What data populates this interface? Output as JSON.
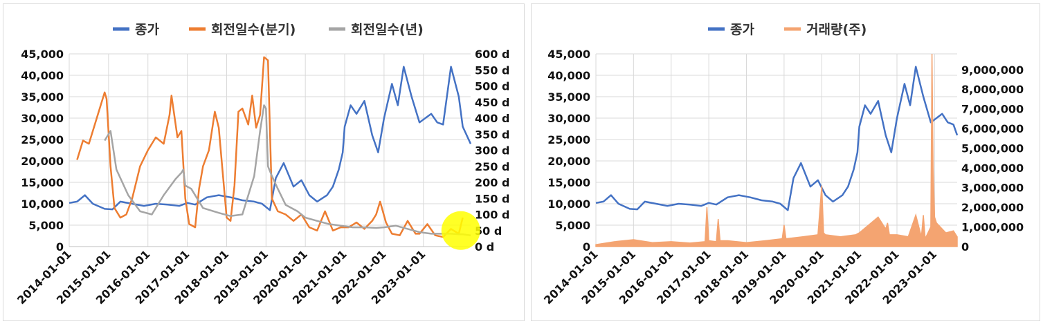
{
  "colors": {
    "close": "#4472C4",
    "turnover_q": "#ED7D31",
    "turnover_y": "#A5A5A5",
    "volume": "#F4A471",
    "highlight": "#FFFF00"
  },
  "chart_data": [
    {
      "type": "line",
      "legend_position": "top",
      "grid": true,
      "legend": [
        "종가",
        "회전일수(분기)",
        "회전일수(년)"
      ],
      "x_tick_labels": [
        "2014-01-01",
        "2015-01-01",
        "2016-01-01",
        "2017-01-01",
        "2018-01-01",
        "2019-01-01",
        "2020-01-01",
        "2021-01-01",
        "2022-01-01",
        "2023-01-01"
      ],
      "x_range": [
        2014.0,
        2024.2
      ],
      "y_left_range": [
        0,
        45000
      ],
      "y_left_ticks": [
        "0",
        "5,000",
        "10,000",
        "15,000",
        "20,000",
        "25,000",
        "30,000",
        "35,000",
        "40,000",
        "45,000"
      ],
      "y_right_range": [
        0,
        600
      ],
      "y_right_ticks": [
        "0 d",
        "50 d",
        "100 d",
        "150 d",
        "200 d",
        "250 d",
        "300 d",
        "350 d",
        "400 d",
        "450 d",
        "500 d",
        "550 d",
        "600 d"
      ],
      "series": [
        {
          "name": "종가",
          "axis": "left",
          "x": [
            2014.0,
            2014.2,
            2014.4,
            2014.6,
            2014.9,
            2015.1,
            2015.3,
            2015.6,
            2015.9,
            2016.2,
            2016.5,
            2016.8,
            2017.0,
            2017.2,
            2017.5,
            2017.8,
            2018.1,
            2018.4,
            2018.7,
            2018.9,
            2019.1,
            2019.25,
            2019.45,
            2019.7,
            2019.9,
            2020.1,
            2020.3,
            2020.55,
            2020.7,
            2020.85,
            2020.95,
            2021.0,
            2021.15,
            2021.3,
            2021.5,
            2021.7,
            2021.85,
            2022.0,
            2022.2,
            2022.35,
            2022.5,
            2022.7,
            2022.9,
            2023.05,
            2023.2,
            2023.35,
            2023.5,
            2023.7,
            2023.9,
            2024.0,
            2024.2
          ],
          "values": [
            10200,
            10500,
            12000,
            10000,
            8800,
            8700,
            10500,
            10000,
            9500,
            10000,
            9800,
            9500,
            10200,
            9800,
            11500,
            12000,
            11500,
            10800,
            10500,
            10000,
            8500,
            16000,
            19500,
            14000,
            15500,
            12000,
            10500,
            12000,
            14000,
            18000,
            22000,
            28000,
            33000,
            31000,
            34000,
            26000,
            22000,
            30000,
            38000,
            33000,
            42000,
            35000,
            29000,
            30000,
            31000,
            29000,
            28500,
            42000,
            35000,
            28000,
            24000
          ]
        },
        {
          "name": "회전일수(분기)",
          "axis": "right",
          "x": [
            2014.2,
            2014.35,
            2014.5,
            2014.65,
            2014.8,
            2014.9,
            2014.95,
            2015.05,
            2015.15,
            2015.3,
            2015.45,
            2015.6,
            2015.8,
            2016.0,
            2016.2,
            2016.4,
            2016.55,
            2016.6,
            2016.75,
            2016.85,
            2016.95,
            2017.05,
            2017.2,
            2017.3,
            2017.4,
            2017.55,
            2017.7,
            2017.8,
            2017.9,
            2018.0,
            2018.1,
            2018.2,
            2018.3,
            2018.4,
            2018.55,
            2018.65,
            2018.75,
            2018.85,
            2018.95,
            2019.05,
            2019.15,
            2019.3,
            2019.5,
            2019.7,
            2019.9,
            2020.1,
            2020.3,
            2020.5,
            2020.7,
            2020.9,
            2021.1,
            2021.3,
            2021.5,
            2021.7,
            2021.8,
            2021.9,
            2022.05,
            2022.2,
            2022.4,
            2022.6,
            2022.8,
            2022.9,
            2023.1,
            2023.3,
            2023.5,
            2023.7,
            2023.9,
            2024.0
          ],
          "values": [
            270,
            330,
            320,
            380,
            440,
            480,
            460,
            250,
            120,
            90,
            100,
            150,
            250,
            300,
            340,
            320,
            410,
            470,
            340,
            360,
            150,
            70,
            60,
            180,
            250,
            300,
            420,
            370,
            230,
            90,
            80,
            190,
            420,
            430,
            380,
            470,
            370,
            410,
            590,
            580,
            150,
            110,
            100,
            80,
            100,
            60,
            50,
            110,
            50,
            60,
            60,
            75,
            55,
            80,
            100,
            140,
            75,
            40,
            35,
            80,
            40,
            40,
            70,
            35,
            30,
            55,
            40,
            90
          ]
        },
        {
          "name": "회전일수(년)",
          "axis": "right",
          "x": [
            2014.9,
            2015.05,
            2015.2,
            2015.5,
            2015.8,
            2016.1,
            2016.4,
            2016.7,
            2016.85,
            2016.9,
            2016.95,
            2017.1,
            2017.4,
            2017.8,
            2018.1,
            2018.4,
            2018.7,
            2018.85,
            2018.95,
            2019.0,
            2019.05,
            2019.15,
            2019.3,
            2019.5,
            2019.8,
            2020.0,
            2020.3,
            2020.6,
            2020.9,
            2021.2,
            2021.5,
            2021.8,
            2022.0,
            2022.3,
            2022.6,
            2022.9,
            2023.2,
            2023.5,
            2023.7,
            2023.9,
            2024.0,
            2024.2
          ],
          "values": [
            330,
            360,
            240,
            160,
            110,
            100,
            160,
            210,
            230,
            240,
            190,
            180,
            120,
            105,
            95,
            100,
            220,
            360,
            440,
            430,
            250,
            220,
            180,
            130,
            110,
            90,
            80,
            70,
            65,
            60,
            60,
            58,
            60,
            65,
            55,
            45,
            40,
            40,
            40,
            38,
            38,
            35
          ]
        }
      ],
      "highlight": {
        "x": 2023.95,
        "y_right": 50
      }
    },
    {
      "type": "line",
      "legend_position": "top",
      "grid": true,
      "legend": [
        "종가",
        "거래량(주)"
      ],
      "x_tick_labels": [
        "2014-01-01",
        "2015-01-01",
        "2016-01-01",
        "2017-01-01",
        "2018-01-01",
        "2019-01-01",
        "2020-01-01",
        "2021-01-01",
        "2022-01-01",
        "2023-01-01"
      ],
      "x_range": [
        2014.0,
        2023.6
      ],
      "y_left_range": [
        0,
        45000
      ],
      "y_left_ticks": [
        "0",
        "5,000",
        "10,000",
        "15,000",
        "20,000",
        "25,000",
        "30,000",
        "35,000",
        "40,000",
        "45,000"
      ],
      "y_right_range": [
        0,
        9800000
      ],
      "y_right_ticks": [
        "0",
        "1,000,000",
        "2,000,000",
        "3,000,000",
        "4,000,000",
        "5,000,000",
        "6,000,000",
        "7,000,000",
        "8,000,000",
        "9,000,000"
      ],
      "series": [
        {
          "name": "종가",
          "axis": "left",
          "x": [
            2014.0,
            2014.2,
            2014.4,
            2014.6,
            2014.9,
            2015.1,
            2015.3,
            2015.6,
            2015.9,
            2016.2,
            2016.5,
            2016.8,
            2017.0,
            2017.2,
            2017.5,
            2017.8,
            2018.1,
            2018.4,
            2018.7,
            2018.9,
            2019.1,
            2019.25,
            2019.45,
            2019.7,
            2019.9,
            2020.1,
            2020.3,
            2020.55,
            2020.7,
            2020.85,
            2020.95,
            2021.0,
            2021.15,
            2021.3,
            2021.5,
            2021.7,
            2021.85,
            2022.0,
            2022.2,
            2022.35,
            2022.5,
            2022.7,
            2022.9,
            2023.05,
            2023.2,
            2023.35,
            2023.5,
            2023.6
          ],
          "values": [
            10200,
            10500,
            12000,
            10000,
            8800,
            8700,
            10500,
            10000,
            9500,
            10000,
            9800,
            9500,
            10200,
            9800,
            11500,
            12000,
            11500,
            10800,
            10500,
            10000,
            8500,
            16000,
            19500,
            14000,
            15500,
            12000,
            10500,
            12000,
            14000,
            18000,
            22000,
            28000,
            33000,
            31000,
            34000,
            26000,
            22000,
            30000,
            38000,
            33000,
            42000,
            35000,
            29000,
            30000,
            31000,
            29000,
            28500,
            26000
          ]
        },
        {
          "name": "거래량(주)",
          "axis": "right",
          "type": "area",
          "x": [
            2014.0,
            2014.5,
            2015.0,
            2015.5,
            2016.0,
            2016.5,
            2016.9,
            2016.95,
            2017.0,
            2017.2,
            2017.25,
            2017.3,
            2017.5,
            2018.0,
            2018.5,
            2018.95,
            2019.0,
            2019.05,
            2019.5,
            2019.9,
            2020.0,
            2020.05,
            2020.1,
            2020.5,
            2020.9,
            2021.0,
            2021.5,
            2021.7,
            2021.75,
            2021.8,
            2022.0,
            2022.3,
            2022.5,
            2022.65,
            2022.7,
            2022.75,
            2022.9,
            2022.93,
            2022.96,
            2023.0,
            2023.05,
            2023.3,
            2023.5,
            2023.6
          ],
          "values": [
            100000,
            250000,
            350000,
            200000,
            250000,
            180000,
            250000,
            2000000,
            300000,
            250000,
            1400000,
            300000,
            300000,
            200000,
            300000,
            400000,
            1100000,
            400000,
            500000,
            600000,
            3100000,
            700000,
            600000,
            500000,
            600000,
            700000,
            1500000,
            900000,
            1200000,
            600000,
            600000,
            500000,
            1600000,
            500000,
            1600000,
            400000,
            1000000,
            9800000,
            4000000,
            1500000,
            1200000,
            700000,
            800000,
            500000
          ]
        }
      ]
    }
  ]
}
